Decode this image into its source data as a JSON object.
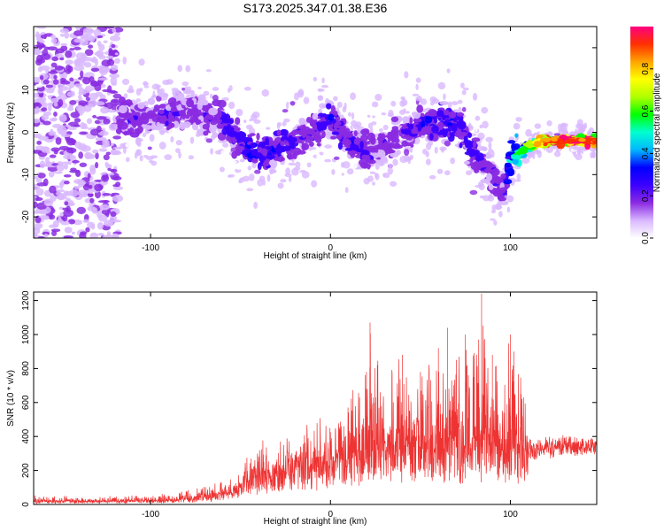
{
  "title": "S173.2025.347.01.38.E36",
  "chart_data": [
    {
      "type": "heatmap",
      "xlabel": "Height of straight line (km)",
      "ylabel": "Frequency (Hz)",
      "xlim": [
        -165,
        148
      ],
      "ylim": [
        -25,
        25
      ],
      "x_ticks": [
        -100,
        0,
        100
      ],
      "x_tick_labels": [
        "-100",
        "0",
        "100"
      ],
      "y_ticks": [
        -20,
        -10,
        0,
        10,
        20
      ],
      "y_tick_labels": [
        "-20",
        "-10",
        "0",
        "10",
        "20"
      ],
      "colorbar": {
        "label": "Normalized spectral amplitude",
        "range": [
          0,
          1
        ],
        "ticks": [
          0,
          0.2,
          0.4,
          0.6,
          0.8
        ],
        "tick_labels": [
          "0.0",
          "0.2",
          "0.4",
          "0.6",
          "0.8"
        ],
        "colormap": [
          "#ffffff",
          "#d9b8ff",
          "#8a2be2",
          "#3b00ff",
          "#0000ff",
          "#00b7ff",
          "#00ffd0",
          "#00ff00",
          "#b0ff00",
          "#ffff00",
          "#ffa500",
          "#ff3000",
          "#ff0080"
        ]
      },
      "ridge": {
        "x": [
          -115,
          -100,
          -90,
          -80,
          -70,
          -60,
          -50,
          -40,
          -30,
          -20,
          -10,
          0,
          10,
          20,
          30,
          40,
          50,
          60,
          70,
          80,
          90,
          95,
          100,
          105,
          110,
          120,
          130,
          140,
          148
        ],
        "frequency": [
          3,
          3,
          4,
          5,
          4,
          3,
          -2,
          -5,
          -4,
          -2,
          0,
          3,
          -2,
          -5,
          -3,
          -1,
          2,
          3,
          2,
          -5,
          -10,
          -15,
          -7,
          -5,
          -3,
          -2,
          -2,
          -2,
          -2
        ],
        "amplitude": [
          0.25,
          0.2,
          0.25,
          0.2,
          0.22,
          0.25,
          0.3,
          0.32,
          0.3,
          0.25,
          0.25,
          0.3,
          0.28,
          0.25,
          0.22,
          0.22,
          0.28,
          0.3,
          0.3,
          0.28,
          0.25,
          0.2,
          0.45,
          0.55,
          0.65,
          0.9,
          0.95,
          0.95,
          0.9
        ]
      }
    },
    {
      "type": "line",
      "xlabel": "Height of straight line (km)",
      "ylabel": "SNR (10 * v/v)",
      "xlim": [
        -165,
        148
      ],
      "ylim": [
        0,
        1250
      ],
      "x_ticks": [
        -100,
        0,
        100
      ],
      "x_tick_labels": [
        "-100",
        "0",
        "100"
      ],
      "y_ticks": [
        0,
        200,
        400,
        600,
        800,
        1000,
        1200
      ],
      "y_tick_labels": [
        "0",
        "200",
        "400",
        "600",
        "800",
        "1000",
        "1200"
      ],
      "color": "#ee3333",
      "envelope": {
        "x": [
          -165,
          -120,
          -90,
          -75,
          -60,
          -50,
          -45,
          -30,
          -20,
          -10,
          0,
          10,
          20,
          22,
          30,
          40,
          50,
          60,
          65,
          70,
          75,
          80,
          84,
          90,
          100,
          102,
          108,
          110,
          120,
          130,
          140,
          148
        ],
        "baseline": [
          15,
          15,
          20,
          30,
          50,
          100,
          150,
          170,
          200,
          220,
          230,
          250,
          270,
          280,
          300,
          300,
          320,
          320,
          330,
          340,
          330,
          330,
          340,
          330,
          320,
          330,
          330,
          300,
          320,
          330,
          340,
          330
        ],
        "peak": [
          50,
          50,
          60,
          100,
          140,
          200,
          300,
          420,
          450,
          480,
          520,
          620,
          780,
          1070,
          700,
          880,
          780,
          920,
          1040,
          850,
          1000,
          860,
          1240,
          880,
          1000,
          900,
          700,
          480,
          490,
          500,
          490,
          480
        ]
      }
    }
  ]
}
